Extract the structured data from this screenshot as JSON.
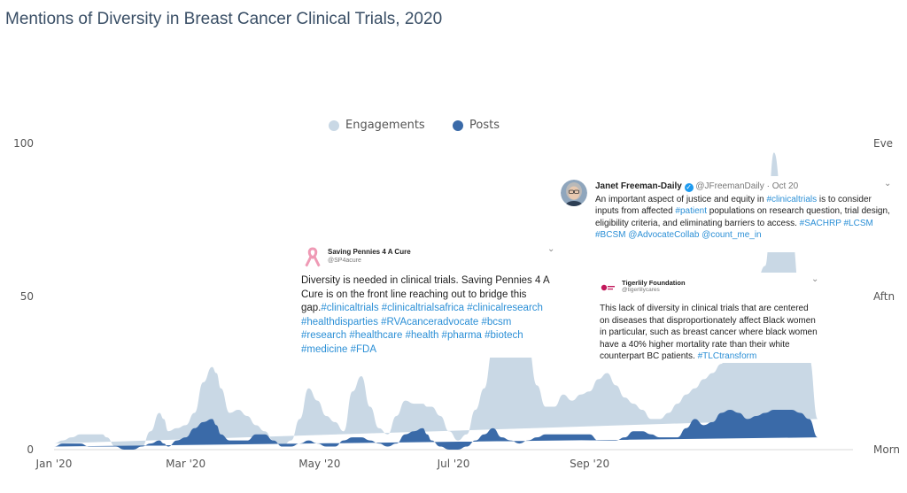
{
  "title": "Mentions of Diversity in Breast Cancer Clinical Trials, 2020",
  "legend": [
    {
      "label": "Engagements",
      "color": "#c9d8e5"
    },
    {
      "label": "Posts",
      "color": "#3a6aa8"
    }
  ],
  "chart_data": {
    "type": "area",
    "title": "Mentions of Diversity in Breast Cancer Clinical Trials, 2020",
    "x_tick_labels": [
      "Jan '20",
      "Mar '20",
      "May '20",
      "Jul '20",
      "Sep '20"
    ],
    "y_left_ticks": [
      "100",
      "50",
      "0"
    ],
    "y_right_ticks": [
      "Eve",
      "Aftn",
      "Morn"
    ],
    "ylim": [
      0,
      100
    ],
    "x_index": [
      0,
      4,
      8,
      12,
      16,
      20,
      22,
      24,
      28,
      32,
      36,
      40,
      44,
      48,
      50,
      52,
      56,
      60,
      64,
      68,
      72,
      74,
      76,
      80,
      84,
      88,
      92,
      96,
      100,
      104,
      108,
      112,
      116,
      120,
      124,
      128,
      132,
      136,
      140,
      144,
      148,
      152,
      156,
      160,
      164,
      168,
      170,
      172,
      176,
      180,
      184,
      188,
      192,
      196,
      200,
      204,
      208,
      212,
      216,
      220,
      224,
      228,
      232,
      236,
      240,
      244,
      248,
      252,
      256,
      260,
      264,
      268,
      272,
      276,
      280,
      284,
      288,
      292,
      296,
      300,
      304,
      308,
      312,
      316,
      320,
      324,
      328,
      332,
      336,
      340,
      344,
      348,
      352,
      356,
      360,
      364
    ],
    "series": [
      {
        "name": "Engagements",
        "values": [
          2,
          3,
          4,
          5,
          5,
          5,
          5,
          4,
          1,
          0,
          0,
          1,
          6,
          12,
          10,
          6,
          7,
          8,
          12,
          22,
          27,
          25,
          20,
          12,
          13,
          11,
          8,
          6,
          3,
          1,
          3,
          10,
          20,
          16,
          11,
          9,
          6,
          19,
          24,
          14,
          7,
          5,
          11,
          16,
          15,
          15,
          14,
          14,
          11,
          6,
          3,
          5,
          13,
          20,
          33,
          45,
          45,
          43,
          34,
          21,
          14,
          14,
          18,
          16,
          18,
          19,
          23,
          25,
          21,
          17,
          15,
          13,
          10,
          10,
          12,
          15,
          18,
          20,
          23,
          25,
          28,
          35,
          42,
          48,
          55,
          60,
          97,
          80,
          70,
          50,
          30,
          10
        ]
      },
      {
        "name": "Posts",
        "values": [
          1,
          2,
          2,
          2,
          1,
          1,
          1,
          1,
          1,
          0,
          0,
          1,
          2,
          3,
          2,
          1,
          3,
          4,
          7,
          9,
          10,
          8,
          5,
          3,
          3,
          3,
          5,
          5,
          3,
          1,
          1,
          2,
          3,
          2,
          1,
          1,
          3,
          4,
          4,
          3,
          2,
          1,
          2,
          5,
          6,
          7,
          5,
          3,
          1,
          0,
          0,
          1,
          3,
          5,
          7,
          4,
          3,
          2,
          3,
          4,
          5,
          5,
          5,
          5,
          5,
          5,
          3,
          3,
          3,
          4,
          6,
          6,
          5,
          4,
          4,
          4,
          7,
          10,
          8,
          9,
          12,
          13,
          12,
          10,
          11,
          12,
          13,
          13,
          13,
          12,
          10,
          4
        ]
      }
    ]
  },
  "tweets": [
    {
      "name": "Saving Pennies 4 A Cure",
      "handle": "@SP4acure",
      "lines": [
        [
          {
            "t": "Diversity is needed in clinical trials. Saving Pennies 4 A"
          }
        ],
        [
          {
            "t": "Cure is on the front line reaching out to bridge this"
          }
        ],
        [
          {
            "t": "gap."
          },
          {
            "t": "#clinicaltrials #clinicaltrialsafrica #clinicalresearch",
            "link": true
          }
        ],
        [
          {
            "t": "#healthdisparties #RVAcanceradvocate #bcsm",
            "link": true
          }
        ],
        [
          {
            "t": "#research #healthcare #health #pharma #biotech",
            "link": true
          }
        ],
        [
          {
            "t": "#medicine #FDA",
            "link": true
          }
        ]
      ]
    },
    {
      "name": "Janet Freeman-Daily",
      "handle": "@JFreemanDaily",
      "date": "Oct 20",
      "lines": [
        [
          {
            "t": "An important aspect of justice and equity in "
          },
          {
            "t": "#clinicaltrials",
            "link": true
          },
          {
            "t": " is to consider"
          }
        ],
        [
          {
            "t": "inputs from affected "
          },
          {
            "t": "#patient",
            "link": true
          },
          {
            "t": " populations on research question, trial design,"
          }
        ],
        [
          {
            "t": "eligibility criteria, and eliminating barriers to access. "
          },
          {
            "t": "#SACHRP #LCSM",
            "link": true
          }
        ],
        [
          {
            "t": "#BCSM @AdvocateCollab @count_me_in",
            "link": true
          }
        ]
      ]
    },
    {
      "name": "Tigerlily Foundation",
      "handle": "@tigerlilycares",
      "lines": [
        [
          {
            "t": "This lack of diversity in clinical trials that are centered"
          }
        ],
        [
          {
            "t": "on diseases that disproportionately affect Black women"
          }
        ],
        [
          {
            "t": "in particular, such as breast cancer where black women"
          }
        ],
        [
          {
            "t": "have a 40% higher mortality rate than their white"
          }
        ],
        [
          {
            "t": "counterpart BC patients. "
          },
          {
            "t": "#TLCtransform",
            "link": true
          }
        ]
      ]
    }
  ]
}
